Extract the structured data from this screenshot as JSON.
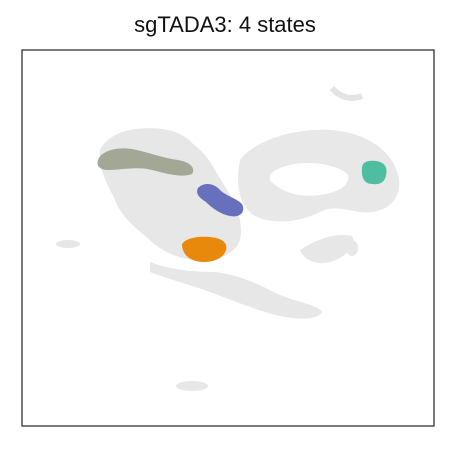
{
  "chart_data": {
    "type": "scatter",
    "title": "sgTADA3: 4 states",
    "xlabel": "",
    "ylabel": "",
    "axes_ticks": false,
    "grid": false,
    "legend": "none",
    "background_color": "#dcdcdc",
    "series": [
      {
        "color": "#a2a895",
        "state": 1
      },
      {
        "color": "#6670bd",
        "state": 2
      },
      {
        "color": "#e8890c",
        "state": 3
      },
      {
        "color": "#4fbea0",
        "state": 4
      }
    ]
  }
}
